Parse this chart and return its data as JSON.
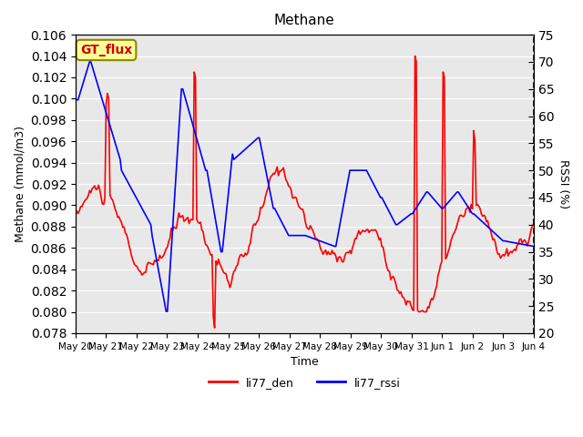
{
  "title": "Methane",
  "ylabel_left": "Methane (mmol/m3)",
  "ylabel_right": "RSSI (%)",
  "xlabel": "Time",
  "ylim_left": [
    0.078,
    0.106
  ],
  "ylim_right": [
    20,
    75
  ],
  "yticks_left": [
    0.078,
    0.08,
    0.082,
    0.084,
    0.086,
    0.088,
    0.09,
    0.092,
    0.094,
    0.096,
    0.098,
    0.1,
    0.102,
    0.104,
    0.106
  ],
  "yticks_right": [
    20,
    25,
    30,
    35,
    40,
    45,
    50,
    55,
    60,
    65,
    70,
    75
  ],
  "xtick_labels": [
    "May 20",
    "May 21",
    "May 22",
    "May 23",
    "May 24",
    "May 25",
    "May 26",
    "May 27",
    "May 28",
    "May 29",
    "May 30",
    "May 31",
    "Jun 1",
    "Jun 2",
    "Jun 3",
    "Jun 4"
  ],
  "color_red": "#FF0000",
  "color_blue": "#0000FF",
  "bg_color": "#E8E8E8",
  "box_color": "#FFFF99",
  "box_text": "GT_flux",
  "legend_labels": [
    "li77_den",
    "li77_rssi"
  ],
  "linewidth": 1.2
}
